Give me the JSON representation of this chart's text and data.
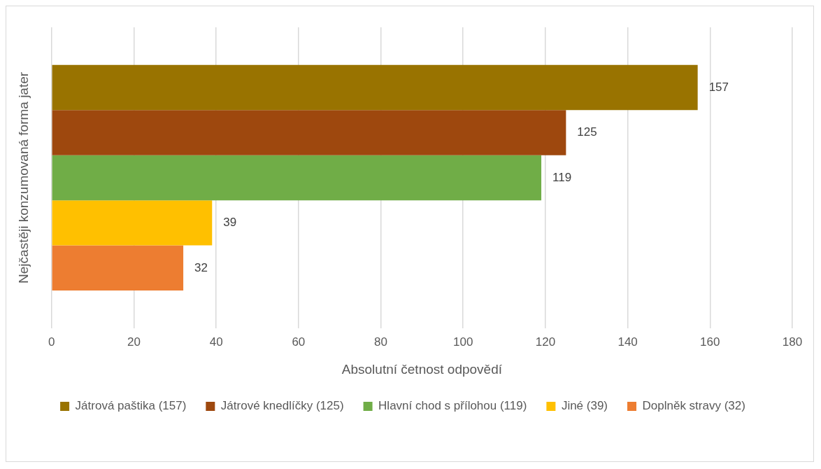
{
  "chart_data": {
    "type": "bar",
    "orientation": "horizontal",
    "ylabel": "Nejčastěji konzumovaná forma jater",
    "xlabel": "Absolutní četnost odpovědí",
    "categories": [
      null
    ],
    "series": [
      {
        "name": "Játrová paštika (157)",
        "color": "#997300",
        "values": [
          157
        ]
      },
      {
        "name": "Játrové knedlíčky (125)",
        "color": "#9e480e",
        "values": [
          125
        ]
      },
      {
        "name": "Hlavní chod s přílohou (119)",
        "color": "#70ad47",
        "values": [
          119
        ]
      },
      {
        "name": "Jiné (39)",
        "color": "#ffc000",
        "values": [
          39
        ]
      },
      {
        "name": "Doplněk stravy (32)",
        "color": "#ed7d31",
        "values": [
          32
        ]
      }
    ],
    "xlim": [
      0,
      180
    ],
    "xticks": [
      0,
      20,
      40,
      60,
      80,
      100,
      120,
      140,
      160,
      180
    ],
    "grid": "x",
    "legend": "bottom",
    "data_labels": true
  }
}
